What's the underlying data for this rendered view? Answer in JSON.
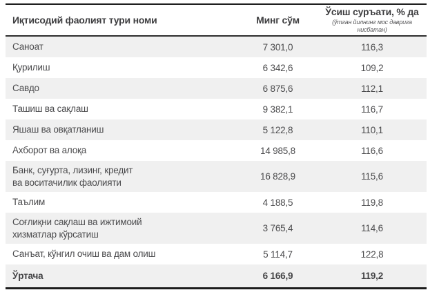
{
  "table": {
    "columns": {
      "name": "Иқтисодий фаолият тури номи",
      "value": "Минг сўм",
      "rate": "Ўсиш суръати, % да",
      "rate_note": "(ўтган йилнинг мос даврига нисбатан)"
    },
    "rows": [
      {
        "name": "Саноат",
        "value": "7 301,0",
        "rate": "116,3"
      },
      {
        "name": "Қурилиш",
        "value": "6 342,6",
        "rate": "109,2"
      },
      {
        "name": "Савдо",
        "value": "6 875,6",
        "rate": "112,1"
      },
      {
        "name": "Ташиш ва сақлаш",
        "value": "9 382,1",
        "rate": "116,7"
      },
      {
        "name": "Яшаш ва овқатланиш",
        "value": "5 122,8",
        "rate": "110,1"
      },
      {
        "name": "Ахборот ва алоқа",
        "value": "14 985,8",
        "rate": "116,6"
      },
      {
        "name": "Банк, суғурта, лизинг, кредит\nва воситачилик фаолияти",
        "value": "16 828,9",
        "rate": "115,6"
      },
      {
        "name": "Таълим",
        "value": "4 188,5",
        "rate": "119,8"
      },
      {
        "name": "Соғлиқни сақлаш ва ижтимоий\nхизматлар кўрсатиш",
        "value": "3 765,4",
        "rate": "114,6"
      },
      {
        "name": "Санъат, кўнгил очиш ва дам олиш",
        "value": "5 114,7",
        "rate": "122,8"
      },
      {
        "name": "Ўртача",
        "value": "6 166,9",
        "rate": "119,2"
      }
    ],
    "colors": {
      "shaded_row": "#f0f0f0",
      "text": "#4b4b4d",
      "border": "#1c1c1c"
    }
  }
}
